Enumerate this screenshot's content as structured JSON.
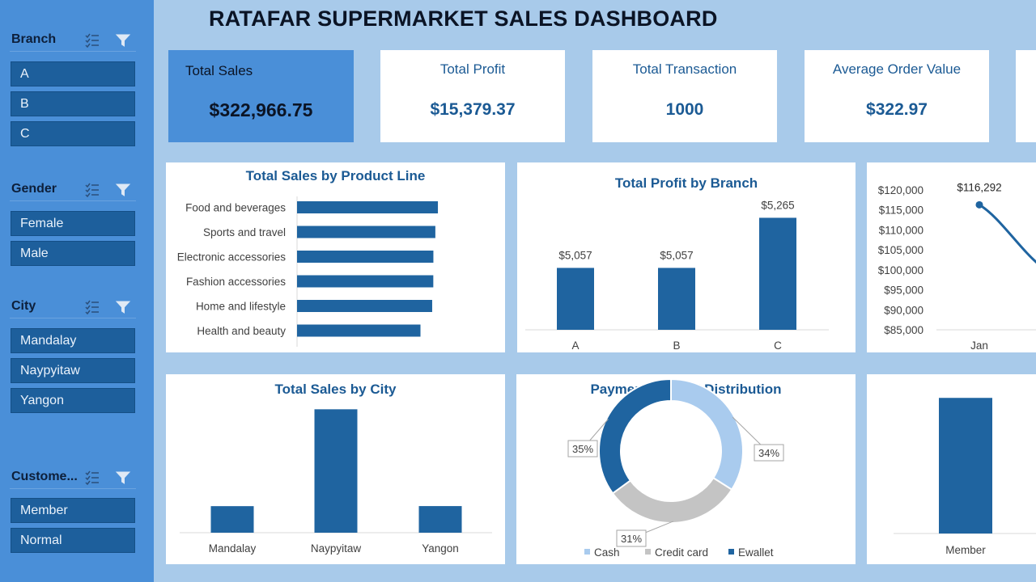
{
  "title": "RATAFAR SUPERMARKET SALES DASHBOARD",
  "colors": {
    "sidebar": "#4a8fd8",
    "slicer_item": "#1d5f9c",
    "accent": "#1b5a94",
    "bar": "#1f64a0",
    "background": "#a8caea"
  },
  "slicers": {
    "branch": {
      "title": "Branch",
      "items": [
        "A",
        "B",
        "C"
      ]
    },
    "gender": {
      "title": "Gender",
      "items": [
        "Female",
        "Male"
      ]
    },
    "city": {
      "title": "City",
      "items": [
        "Mandalay",
        "Naypyitaw",
        "Yangon"
      ]
    },
    "customer": {
      "title": "Custome...",
      "items": [
        "Member",
        "Normal"
      ]
    }
  },
  "kpis": {
    "total_sales": {
      "label": "Total Sales",
      "value": "$322,966.75"
    },
    "total_profit": {
      "label": "Total  Profit",
      "value": "$15,379.37"
    },
    "total_transaction": {
      "label": "Total Transaction",
      "value": "1000"
    },
    "avg_order": {
      "label": "Average Order Value",
      "value": "$322.97"
    }
  },
  "chart_data": [
    {
      "type": "bar",
      "orientation": "horizontal",
      "title": "Total  Sales by Product Line",
      "categories": [
        "Food and beverages",
        "Sports and travel",
        "Electronic accessories",
        "Fashion accessories",
        "Home and lifestyle",
        "Health and beauty"
      ],
      "values": [
        56145,
        55123,
        54338,
        54306,
        53862,
        49194
      ],
      "xlim": [
        0,
        80000
      ]
    },
    {
      "type": "bar",
      "title": "Total Profit by Branch",
      "categories": [
        "A",
        "B",
        "C"
      ],
      "values": [
        5057,
        5057,
        5265
      ],
      "data_labels": [
        "$5,057",
        "$5,057",
        "$5,265"
      ],
      "ylim": [
        4800,
        5300
      ]
    },
    {
      "type": "line",
      "title": "",
      "categories": [
        "Jan"
      ],
      "values": [
        116292
      ],
      "data_labels": [
        "$116,292"
      ],
      "yticks": [
        "$120,000",
        "$115,000",
        "$110,000",
        "$105,000",
        "$100,000",
        "$95,000",
        "$90,000",
        "$85,000"
      ],
      "ylim": [
        85000,
        120000
      ]
    },
    {
      "type": "bar",
      "title": "Total Sales by City",
      "categories": [
        "Mandalay",
        "Naypyitaw",
        "Yangon"
      ],
      "values": [
        106198,
        110569,
        106201
      ],
      "ylim": [
        105000,
        110800
      ]
    },
    {
      "type": "pie",
      "title": "Payment Method Distribution",
      "categories": [
        "Cash",
        "Credit card",
        "Ewallet"
      ],
      "values": [
        34,
        31,
        35
      ],
      "data_labels": [
        "34%",
        "31%",
        "35%"
      ],
      "colors": [
        "#a9cbee",
        "#c4c4c4",
        "#1f64a0"
      ],
      "legend": "bottom"
    },
    {
      "type": "bar",
      "title": "",
      "categories": [
        "Member"
      ],
      "values": [
        164223
      ],
      "ylim": [
        0,
        185000
      ]
    }
  ]
}
